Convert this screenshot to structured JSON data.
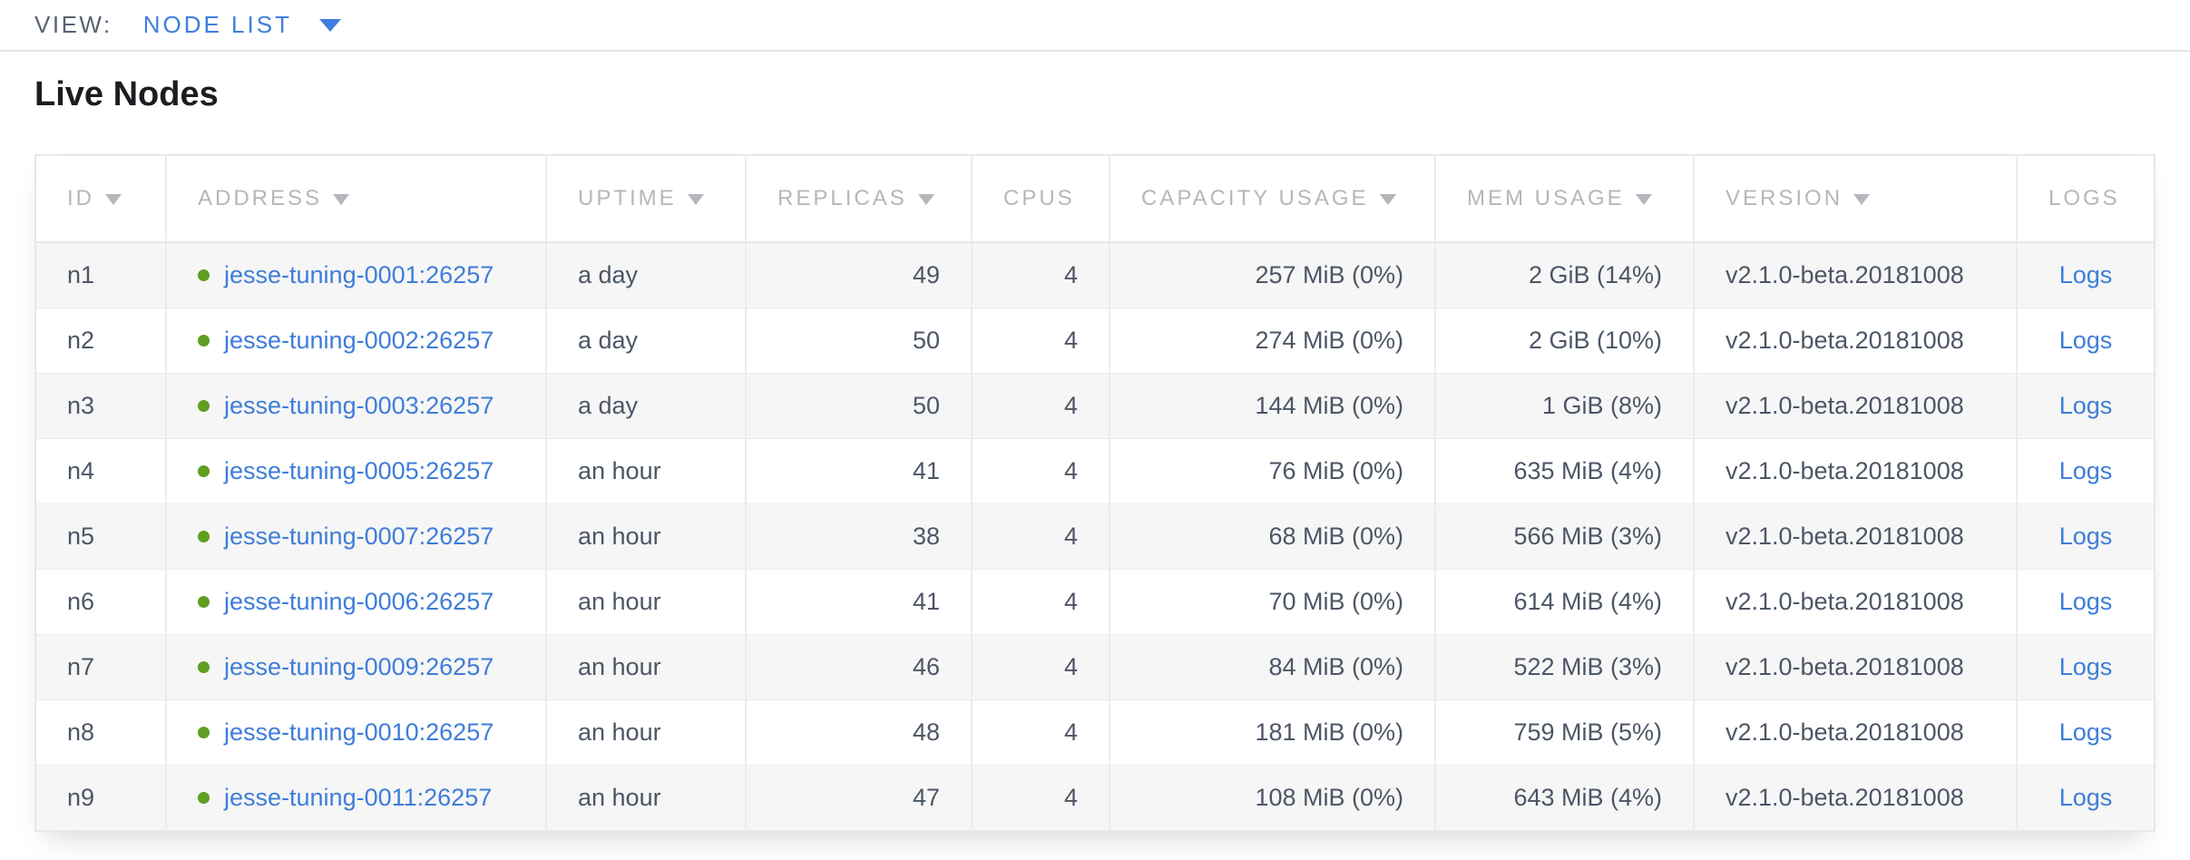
{
  "view_bar": {
    "label": "VIEW:",
    "selected": "NODE LIST"
  },
  "page": {
    "title": "Live Nodes"
  },
  "colors": {
    "accent_blue": "#3f7ee0",
    "link_blue": "#3e7dd9",
    "status_green_dot": "#5f9e22",
    "header_gray": "#b4b7bb",
    "cell_text": "#4c5666",
    "row_stripe": "#f6f6f6"
  },
  "table": {
    "columns": [
      {
        "key": "id",
        "label": "ID",
        "sortable": true,
        "align": "left"
      },
      {
        "key": "address",
        "label": "ADDRESS",
        "sortable": true,
        "align": "left"
      },
      {
        "key": "uptime",
        "label": "UPTIME",
        "sortable": true,
        "align": "left"
      },
      {
        "key": "replicas",
        "label": "REPLICAS",
        "sortable": true,
        "align": "right"
      },
      {
        "key": "cpus",
        "label": "CPUS",
        "sortable": false,
        "align": "right"
      },
      {
        "key": "capacity_usage",
        "label": "CAPACITY USAGE",
        "sortable": true,
        "align": "right"
      },
      {
        "key": "mem_usage",
        "label": "MEM USAGE",
        "sortable": true,
        "align": "right"
      },
      {
        "key": "version",
        "label": "VERSION",
        "sortable": true,
        "align": "left"
      },
      {
        "key": "logs",
        "label": "LOGS",
        "sortable": false,
        "align": "center"
      }
    ],
    "rows": [
      {
        "id": "n1",
        "status": "live",
        "address": "jesse-tuning-0001:26257",
        "uptime": "a day",
        "replicas": "49",
        "cpus": "4",
        "capacity_usage": "257 MiB (0%)",
        "mem_usage": "2 GiB (14%)",
        "version": "v2.1.0-beta.20181008",
        "logs": "Logs"
      },
      {
        "id": "n2",
        "status": "live",
        "address": "jesse-tuning-0002:26257",
        "uptime": "a day",
        "replicas": "50",
        "cpus": "4",
        "capacity_usage": "274 MiB (0%)",
        "mem_usage": "2 GiB (10%)",
        "version": "v2.1.0-beta.20181008",
        "logs": "Logs"
      },
      {
        "id": "n3",
        "status": "live",
        "address": "jesse-tuning-0003:26257",
        "uptime": "a day",
        "replicas": "50",
        "cpus": "4",
        "capacity_usage": "144 MiB (0%)",
        "mem_usage": "1 GiB (8%)",
        "version": "v2.1.0-beta.20181008",
        "logs": "Logs"
      },
      {
        "id": "n4",
        "status": "live",
        "address": "jesse-tuning-0005:26257",
        "uptime": "an hour",
        "replicas": "41",
        "cpus": "4",
        "capacity_usage": "76 MiB (0%)",
        "mem_usage": "635 MiB (4%)",
        "version": "v2.1.0-beta.20181008",
        "logs": "Logs"
      },
      {
        "id": "n5",
        "status": "live",
        "address": "jesse-tuning-0007:26257",
        "uptime": "an hour",
        "replicas": "38",
        "cpus": "4",
        "capacity_usage": "68 MiB (0%)",
        "mem_usage": "566 MiB (3%)",
        "version": "v2.1.0-beta.20181008",
        "logs": "Logs"
      },
      {
        "id": "n6",
        "status": "live",
        "address": "jesse-tuning-0006:26257",
        "uptime": "an hour",
        "replicas": "41",
        "cpus": "4",
        "capacity_usage": "70 MiB (0%)",
        "mem_usage": "614 MiB (4%)",
        "version": "v2.1.0-beta.20181008",
        "logs": "Logs"
      },
      {
        "id": "n7",
        "status": "live",
        "address": "jesse-tuning-0009:26257",
        "uptime": "an hour",
        "replicas": "46",
        "cpus": "4",
        "capacity_usage": "84 MiB (0%)",
        "mem_usage": "522 MiB (3%)",
        "version": "v2.1.0-beta.20181008",
        "logs": "Logs"
      },
      {
        "id": "n8",
        "status": "live",
        "address": "jesse-tuning-0010:26257",
        "uptime": "an hour",
        "replicas": "48",
        "cpus": "4",
        "capacity_usage": "181 MiB (0%)",
        "mem_usage": "759 MiB (5%)",
        "version": "v2.1.0-beta.20181008",
        "logs": "Logs"
      },
      {
        "id": "n9",
        "status": "live",
        "address": "jesse-tuning-0011:26257",
        "uptime": "an hour",
        "replicas": "47",
        "cpus": "4",
        "capacity_usage": "108 MiB (0%)",
        "mem_usage": "643 MiB (4%)",
        "version": "v2.1.0-beta.20181008",
        "logs": "Logs"
      }
    ]
  }
}
